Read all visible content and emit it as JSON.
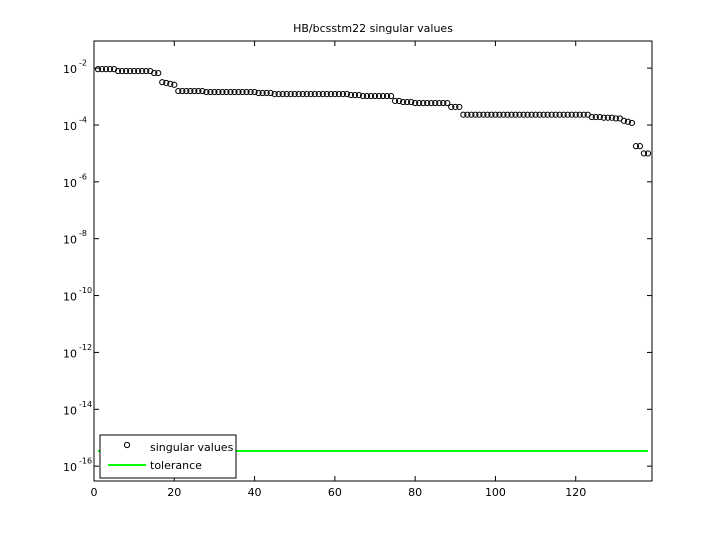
{
  "chart_data": {
    "type": "scatter",
    "title": "HB/bcsstm22 singular values",
    "y_scale": "log",
    "xlim": [
      0,
      139
    ],
    "ylim": [
      3e-17,
      0.09
    ],
    "xticks": [
      0,
      20,
      40,
      60,
      80,
      100,
      120
    ],
    "yticks": [
      {
        "value": 1e-16,
        "label": "10",
        "exponent": "-16"
      },
      {
        "value": 1e-14,
        "label": "10",
        "exponent": "-14"
      },
      {
        "value": 1e-12,
        "label": "10",
        "exponent": "-12"
      },
      {
        "value": 1e-10,
        "label": "10",
        "exponent": "-10"
      },
      {
        "value": 1e-08,
        "label": "10",
        "exponent": "-8"
      },
      {
        "value": 1e-06,
        "label": "10",
        "exponent": "-6"
      },
      {
        "value": 0.0001,
        "label": "10",
        "exponent": "-4"
      },
      {
        "value": 0.01,
        "label": "10",
        "exponent": "-2"
      }
    ],
    "legend": "lower left",
    "series": [
      {
        "name": "singular values",
        "style": "markers",
        "color": "#000000",
        "x": [
          1,
          2,
          3,
          4,
          5,
          6,
          7,
          8,
          9,
          10,
          11,
          12,
          13,
          14,
          15,
          16,
          17,
          18,
          19,
          20,
          21,
          22,
          23,
          24,
          25,
          26,
          27,
          28,
          29,
          30,
          31,
          32,
          33,
          34,
          35,
          36,
          37,
          38,
          39,
          40,
          41,
          42,
          43,
          44,
          45,
          46,
          47,
          48,
          49,
          50,
          51,
          52,
          53,
          54,
          55,
          56,
          57,
          58,
          59,
          60,
          61,
          62,
          63,
          64,
          65,
          66,
          67,
          68,
          69,
          70,
          71,
          72,
          73,
          74,
          75,
          76,
          77,
          78,
          79,
          80,
          81,
          82,
          83,
          84,
          85,
          86,
          87,
          88,
          89,
          90,
          91,
          92,
          93,
          94,
          95,
          96,
          97,
          98,
          99,
          100,
          101,
          102,
          103,
          104,
          105,
          106,
          107,
          108,
          109,
          110,
          111,
          112,
          113,
          114,
          115,
          116,
          117,
          118,
          119,
          120,
          121,
          122,
          123,
          124,
          125,
          126,
          127,
          128,
          129,
          130,
          131,
          132,
          133,
          134,
          135,
          136,
          137,
          138
        ],
        "values": [
          0.0092,
          0.0092,
          0.0092,
          0.0092,
          0.0092,
          0.0079,
          0.0079,
          0.0079,
          0.0079,
          0.0079,
          0.0079,
          0.0079,
          0.0079,
          0.0079,
          0.0067,
          0.0067,
          0.0032,
          0.003,
          0.0028,
          0.0026,
          0.00156,
          0.00156,
          0.00156,
          0.00156,
          0.00156,
          0.00156,
          0.00156,
          0.00144,
          0.00144,
          0.00144,
          0.00144,
          0.00144,
          0.00144,
          0.00144,
          0.00144,
          0.00144,
          0.00144,
          0.00144,
          0.00144,
          0.00144,
          0.00133,
          0.00133,
          0.00133,
          0.00133,
          0.00122,
          0.00122,
          0.00122,
          0.00122,
          0.00122,
          0.00122,
          0.00122,
          0.00122,
          0.00122,
          0.00122,
          0.00122,
          0.00122,
          0.00122,
          0.00122,
          0.00122,
          0.00122,
          0.00122,
          0.00122,
          0.00122,
          0.00113,
          0.00113,
          0.00113,
          0.00104,
          0.00104,
          0.00104,
          0.00104,
          0.00104,
          0.00104,
          0.00104,
          0.00104,
          0.0007,
          0.0007,
          0.00064,
          0.00064,
          0.00064,
          0.00059,
          0.00059,
          0.00059,
          0.00059,
          0.00059,
          0.00059,
          0.00059,
          0.00059,
          0.00059,
          0.00043,
          0.00043,
          0.00043,
          0.00023,
          0.00023,
          0.00023,
          0.00023,
          0.00023,
          0.00023,
          0.00023,
          0.00023,
          0.00023,
          0.00023,
          0.00023,
          0.00023,
          0.00023,
          0.00023,
          0.00023,
          0.00023,
          0.00023,
          0.00023,
          0.00023,
          0.00023,
          0.00023,
          0.00023,
          0.00023,
          0.00023,
          0.00023,
          0.00023,
          0.00023,
          0.00023,
          0.00023,
          0.00023,
          0.00023,
          0.00023,
          0.00019,
          0.00019,
          0.00019,
          0.00018,
          0.00018,
          0.00018,
          0.00017,
          0.00017,
          0.00014,
          0.00013,
          0.000118,
          1.8e-05,
          1.8e-05,
          1e-05,
          1e-05
        ]
      },
      {
        "name": "tolerance",
        "style": "line",
        "color": "#00ff00",
        "x": [
          1,
          138
        ],
        "values": [
          3.4e-16,
          3.4e-16
        ]
      }
    ]
  }
}
